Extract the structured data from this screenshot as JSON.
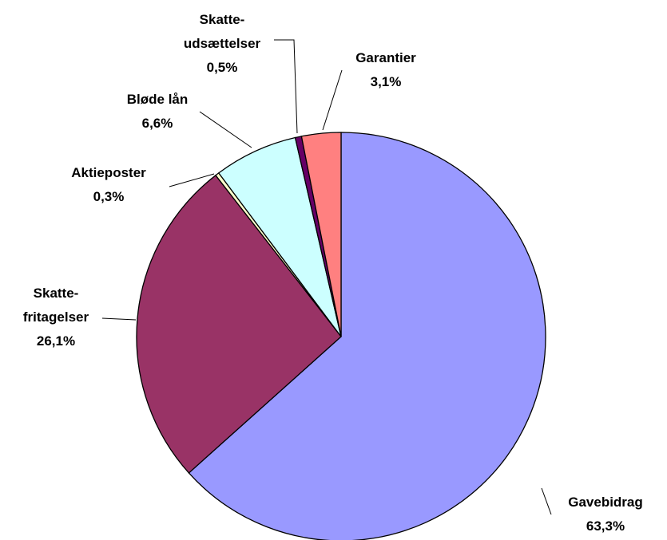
{
  "chart_data": {
    "type": "pie",
    "categories": [
      "Gavebidrag",
      "Skatte-\nfritagelser",
      "Aktieposter",
      "Bløde lån",
      "Skatte-\nudsættelser",
      "Garantier"
    ],
    "values": [
      63.3,
      26.1,
      0.3,
      6.6,
      0.5,
      3.1
    ],
    "value_labels": [
      "63,3%",
      "26,1%",
      "0,3%",
      "6,6%",
      "0,5%",
      "3,1%"
    ],
    "colors": [
      "#9999ff",
      "#993366",
      "#ffffcc",
      "#ccffff",
      "#660066",
      "#ff8080"
    ]
  }
}
